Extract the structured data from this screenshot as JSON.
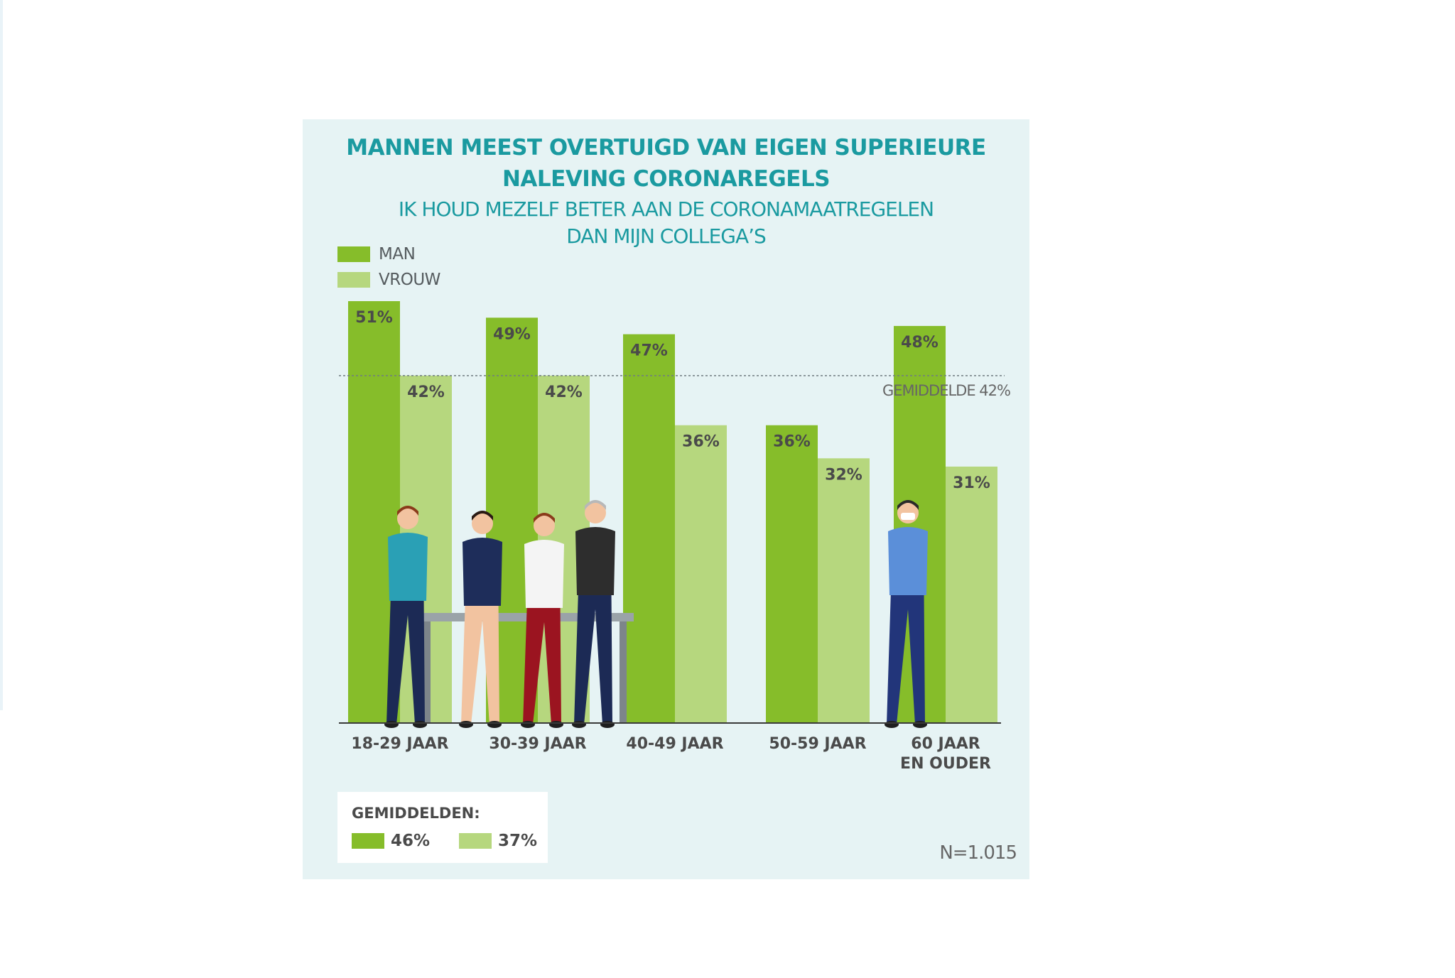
{
  "chart_data": {
    "type": "bar",
    "title": "MANNEN MEEST OVERTUIGD VAN EIGEN SUPERIEURE NALEVING CORONAREGELS",
    "title_lines": [
      "MANNEN MEEST OVERTUIGD VAN EIGEN SUPERIEURE",
      "NALEVING CORONAREGELS"
    ],
    "subtitle": "IK HOUD MEZELF BETER AAN DE CORONAMAATREGELEN DAN MIJN COLLEGA’S",
    "subtitle_lines": [
      "IK HOUD MEZELF BETER AAN DE CORONAMAATREGELEN",
      "DAN MIJN COLLEGA’S"
    ],
    "categories": [
      "18-29 JAAR",
      "30-39 JAAR",
      "40-49 JAAR",
      "50-59 JAAR",
      "60 JAAR EN OUDER"
    ],
    "category_lines": [
      [
        "18-29 JAAR"
      ],
      [
        "30-39 JAAR"
      ],
      [
        "40-49 JAAR"
      ],
      [
        "50-59 JAAR"
      ],
      [
        "60 JAAR",
        "EN OUDER"
      ]
    ],
    "series": [
      {
        "name": "MAN",
        "values": [
          51,
          49,
          47,
          36,
          48
        ],
        "labels": [
          "51%",
          "49%",
          "47%",
          "36%",
          "48%"
        ],
        "color": "#86bd2a"
      },
      {
        "name": "VROUW",
        "values": [
          42,
          42,
          36,
          32,
          31
        ],
        "labels": [
          "42%",
          "42%",
          "36%",
          "32%",
          "31%"
        ],
        "color": "#b6d77e"
      }
    ],
    "reference_line": {
      "value": 42,
      "label": "GEMIDDELDE 42%"
    },
    "ylim": [
      0,
      51
    ],
    "legend_position": "top-left",
    "grid": false
  },
  "averages": {
    "title": "GEMIDDELDEN:",
    "man_value": "46%",
    "vrouw_value": "37%"
  },
  "sample_size": "N=1.015",
  "illustration": {
    "description_icons": [
      "office-workers-illustration",
      "masked-man-illustration"
    ]
  },
  "colors": {
    "panel": "#e6f3f4",
    "title": "#1a9aa0",
    "man": "#86bd2a",
    "vrouw": "#b6d77e"
  }
}
